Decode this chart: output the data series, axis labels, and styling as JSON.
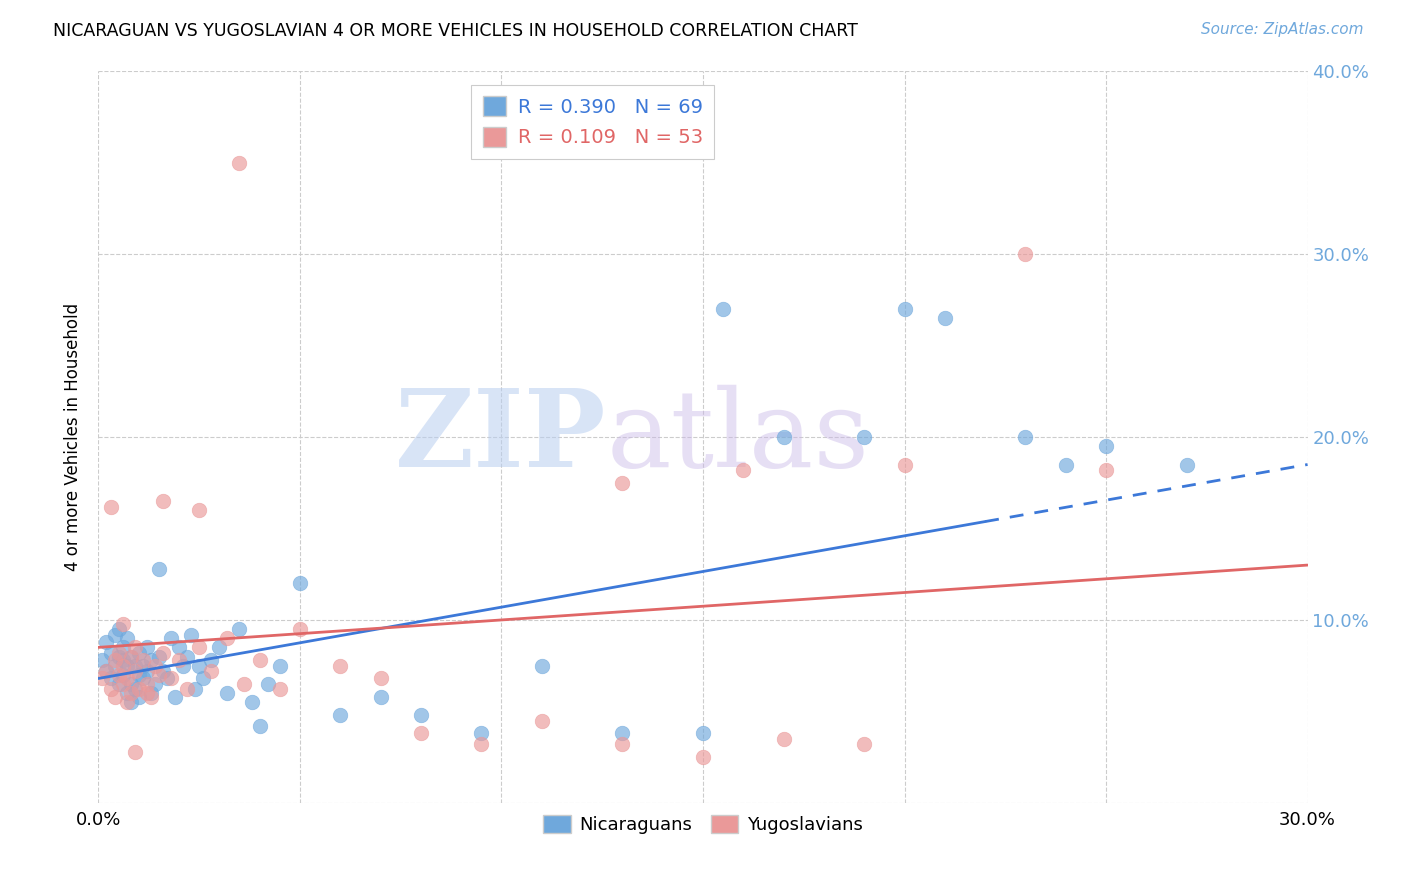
{
  "title": "NICARAGUAN VS YUGOSLAVIAN 4 OR MORE VEHICLES IN HOUSEHOLD CORRELATION CHART",
  "source": "Source: ZipAtlas.com",
  "ylabel": "4 or more Vehicles in Household",
  "xlim": [
    0.0,
    0.3
  ],
  "ylim": [
    0.0,
    0.4
  ],
  "xtick_positions": [
    0.0,
    0.05,
    0.1,
    0.15,
    0.2,
    0.25,
    0.3
  ],
  "xtick_labels": [
    "0.0%",
    "",
    "",
    "",
    "",
    "",
    "30.0%"
  ],
  "ytick_positions": [
    0.0,
    0.1,
    0.2,
    0.3,
    0.4
  ],
  "ytick_labels_right": [
    "",
    "10.0%",
    "20.0%",
    "30.0%",
    "40.0%"
  ],
  "nic_R": 0.39,
  "nic_N": 69,
  "yug_R": 0.109,
  "yug_N": 53,
  "nic_color": "#6fa8dc",
  "yug_color": "#ea9999",
  "nic_line_color": "#3c78d8",
  "yug_line_color": "#e06666",
  "nic_line_solid_end": 0.22,
  "watermark": "ZIPatlas",
  "watermark_zip_color": "#a4c2f4",
  "watermark_atlas_color": "#b4a7d6",
  "background_color": "#ffffff",
  "grid_color": "#cccccc",
  "title_color": "#000000",
  "source_color": "#6fa8dc",
  "right_tick_color": "#6fa8dc",
  "nic_x": [
    0.001,
    0.002,
    0.002,
    0.003,
    0.003,
    0.004,
    0.004,
    0.005,
    0.005,
    0.005,
    0.006,
    0.006,
    0.006,
    0.007,
    0.007,
    0.007,
    0.008,
    0.008,
    0.008,
    0.009,
    0.009,
    0.01,
    0.01,
    0.01,
    0.011,
    0.011,
    0.012,
    0.012,
    0.013,
    0.013,
    0.014,
    0.015,
    0.016,
    0.017,
    0.018,
    0.019,
    0.02,
    0.021,
    0.022,
    0.023,
    0.024,
    0.025,
    0.026,
    0.028,
    0.03,
    0.032,
    0.035,
    0.038,
    0.042,
    0.045,
    0.05,
    0.06,
    0.07,
    0.08,
    0.095,
    0.11,
    0.13,
    0.15,
    0.17,
    0.19,
    0.21,
    0.23,
    0.25,
    0.27,
    0.155,
    0.2,
    0.24,
    0.04,
    0.015
  ],
  "nic_y": [
    0.078,
    0.088,
    0.072,
    0.082,
    0.068,
    0.075,
    0.092,
    0.065,
    0.08,
    0.095,
    0.07,
    0.078,
    0.085,
    0.06,
    0.075,
    0.09,
    0.065,
    0.08,
    0.055,
    0.075,
    0.062,
    0.07,
    0.082,
    0.058,
    0.075,
    0.068,
    0.072,
    0.085,
    0.06,
    0.078,
    0.065,
    0.08,
    0.072,
    0.068,
    0.09,
    0.058,
    0.085,
    0.075,
    0.08,
    0.092,
    0.062,
    0.075,
    0.068,
    0.078,
    0.085,
    0.06,
    0.095,
    0.055,
    0.065,
    0.075,
    0.12,
    0.048,
    0.058,
    0.048,
    0.038,
    0.075,
    0.038,
    0.038,
    0.2,
    0.2,
    0.265,
    0.2,
    0.195,
    0.185,
    0.27,
    0.27,
    0.185,
    0.042,
    0.128
  ],
  "yug_x": [
    0.001,
    0.002,
    0.003,
    0.004,
    0.004,
    0.005,
    0.005,
    0.006,
    0.006,
    0.007,
    0.007,
    0.008,
    0.008,
    0.009,
    0.009,
    0.01,
    0.011,
    0.012,
    0.013,
    0.014,
    0.015,
    0.016,
    0.018,
    0.02,
    0.022,
    0.025,
    0.028,
    0.032,
    0.036,
    0.04,
    0.045,
    0.05,
    0.06,
    0.07,
    0.08,
    0.095,
    0.11,
    0.13,
    0.15,
    0.17,
    0.19,
    0.13,
    0.16,
    0.2,
    0.23,
    0.003,
    0.006,
    0.009,
    0.012,
    0.016,
    0.025,
    0.035,
    0.25
  ],
  "yug_y": [
    0.068,
    0.072,
    0.062,
    0.078,
    0.058,
    0.07,
    0.082,
    0.065,
    0.075,
    0.055,
    0.068,
    0.08,
    0.06,
    0.072,
    0.085,
    0.062,
    0.078,
    0.065,
    0.058,
    0.075,
    0.07,
    0.082,
    0.068,
    0.078,
    0.062,
    0.085,
    0.072,
    0.09,
    0.065,
    0.078,
    0.062,
    0.095,
    0.075,
    0.068,
    0.038,
    0.032,
    0.045,
    0.032,
    0.025,
    0.035,
    0.032,
    0.175,
    0.182,
    0.185,
    0.3,
    0.162,
    0.098,
    0.028,
    0.06,
    0.165,
    0.16,
    0.35,
    0.182
  ]
}
